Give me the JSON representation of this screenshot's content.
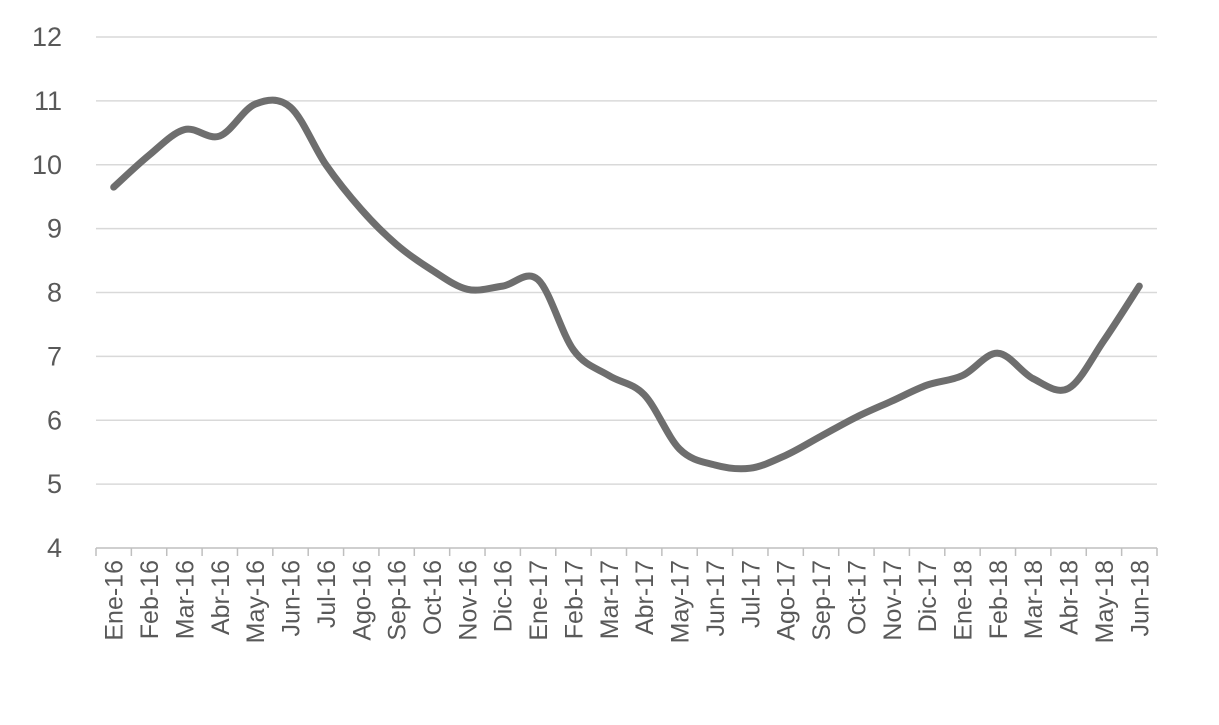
{
  "chart_data": {
    "type": "line",
    "title": "",
    "xlabel": "",
    "ylabel": "",
    "ylim": [
      4,
      12
    ],
    "yticks": [
      4,
      5,
      6,
      7,
      8,
      9,
      10,
      11,
      12
    ],
    "grid": true,
    "legend": "none",
    "line_color": "#6e6e6e",
    "categories": [
      "Ene-16",
      "Feb-16",
      "Mar-16",
      "Abr-16",
      "May-16",
      "Jun-16",
      "Jul-16",
      "Ago-16",
      "Sep-16",
      "Oct-16",
      "Nov-16",
      "Dic-16",
      "Ene-17",
      "Feb-17",
      "Mar-17",
      "Abr-17",
      "May-17",
      "Jun-17",
      "Jul-17",
      "Ago-17",
      "Sep-17",
      "Oct-17",
      "Nov-17",
      "Dic-17",
      "Ene-18",
      "Feb-18",
      "Mar-18",
      "Abr-18",
      "May-18",
      "Jun-18"
    ],
    "values": [
      9.65,
      10.15,
      10.55,
      10.45,
      10.95,
      10.9,
      10.0,
      9.3,
      8.75,
      8.35,
      8.05,
      8.1,
      8.2,
      7.1,
      6.7,
      6.4,
      5.55,
      5.3,
      5.25,
      5.45,
      5.75,
      6.05,
      6.3,
      6.55,
      6.7,
      7.05,
      6.65,
      6.5,
      7.25,
      8.1
    ]
  }
}
